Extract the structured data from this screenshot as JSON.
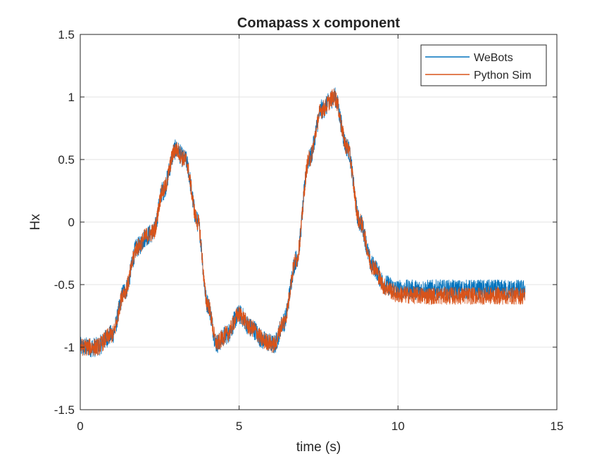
{
  "chart_data": {
    "type": "line",
    "title": "Comapass x component",
    "xlabel": "time (s)",
    "ylabel": "Hx",
    "xlim": [
      0,
      15
    ],
    "ylim": [
      -1.5,
      1.5
    ],
    "xticks": [
      0,
      5,
      10,
      15
    ],
    "xtick_labels": [
      "0",
      "5",
      "10",
      "15"
    ],
    "yticks": [
      -1.5,
      -1,
      -0.5,
      0,
      0.5,
      1,
      1.5
    ],
    "ytick_labels": [
      "-1.5",
      "-1",
      "-0.5",
      "0",
      "0.5",
      "1",
      "1.5"
    ],
    "grid": true,
    "legend_position": "top-right",
    "series": [
      {
        "name": "WeBots",
        "color": "#0072BD",
        "noise_amplitude": 0.08,
        "x": [
          0,
          0.5,
          1.0,
          1.4,
          1.8,
          2.1,
          2.3,
          2.6,
          3.0,
          3.3,
          3.7,
          4.0,
          4.3,
          4.6,
          5.0,
          5.4,
          5.8,
          6.1,
          6.4,
          6.8,
          7.2,
          7.6,
          8.0,
          8.4,
          8.8,
          9.2,
          9.6,
          10.0,
          11.0,
          12.0,
          13.0,
          14.0
        ],
        "y": [
          -1.0,
          -1.0,
          -0.9,
          -0.55,
          -0.2,
          -0.11,
          -0.08,
          0.25,
          0.58,
          0.5,
          0.0,
          -0.65,
          -0.97,
          -0.9,
          -0.74,
          -0.85,
          -0.95,
          -0.98,
          -0.8,
          -0.3,
          0.5,
          0.9,
          1.0,
          0.6,
          0.0,
          -0.35,
          -0.5,
          -0.54,
          -0.54,
          -0.54,
          -0.54,
          -0.54
        ]
      },
      {
        "name": "Python Sim",
        "color": "#D95319",
        "noise_amplitude": 0.07,
        "x": [
          0,
          0.5,
          1.0,
          1.4,
          1.8,
          2.1,
          2.3,
          2.6,
          3.0,
          3.3,
          3.7,
          4.0,
          4.3,
          4.6,
          5.0,
          5.4,
          5.8,
          6.1,
          6.4,
          6.8,
          7.2,
          7.6,
          8.0,
          8.4,
          8.8,
          9.2,
          9.6,
          10.0,
          11.0,
          12.0,
          13.0,
          14.0
        ],
        "y": [
          -1.0,
          -1.0,
          -0.9,
          -0.55,
          -0.2,
          -0.11,
          -0.08,
          0.25,
          0.58,
          0.5,
          0.0,
          -0.65,
          -0.97,
          -0.9,
          -0.74,
          -0.85,
          -0.95,
          -0.98,
          -0.8,
          -0.3,
          0.5,
          0.9,
          1.0,
          0.6,
          0.0,
          -0.35,
          -0.52,
          -0.58,
          -0.59,
          -0.59,
          -0.59,
          -0.59
        ]
      }
    ]
  }
}
